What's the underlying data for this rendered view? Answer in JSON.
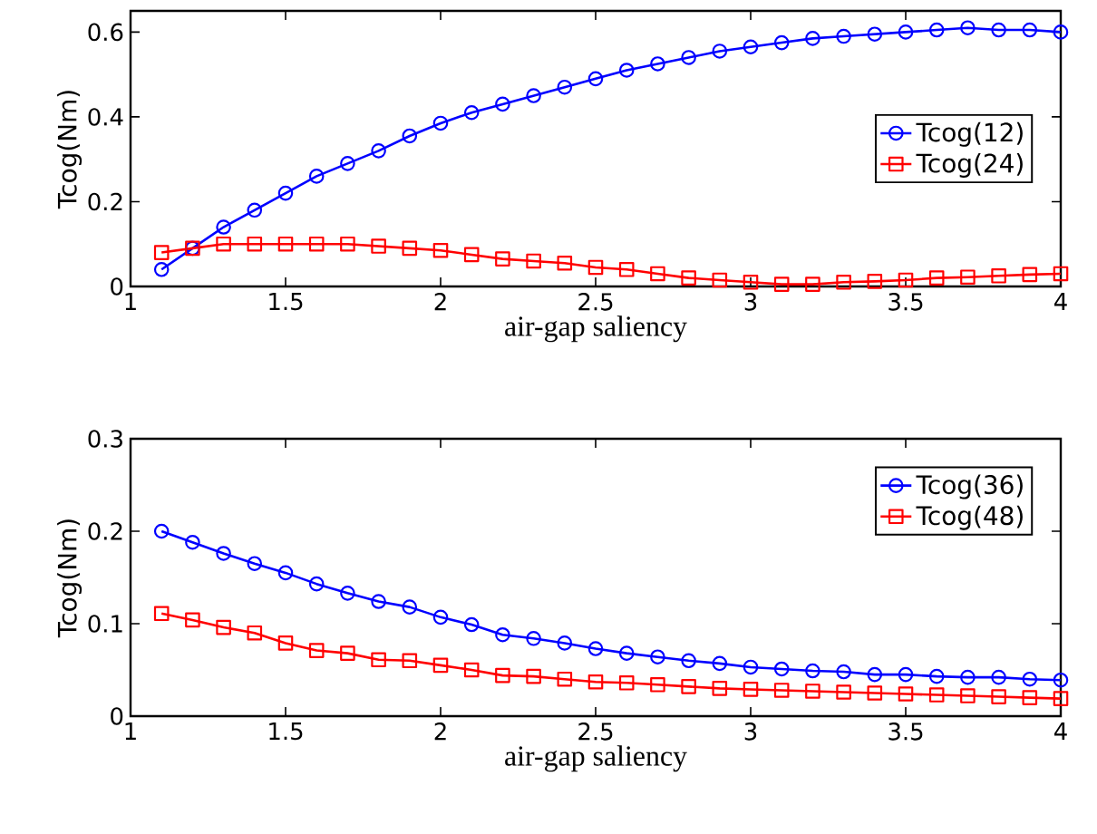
{
  "chart_data": [
    {
      "type": "line",
      "xlabel": "air-gap saliency",
      "ylabel": "Tcog(Nm)",
      "x": [
        1.1,
        1.2,
        1.3,
        1.4,
        1.5,
        1.6,
        1.7,
        1.8,
        1.9,
        2.0,
        2.1,
        2.2,
        2.3,
        2.4,
        2.5,
        2.6,
        2.7,
        2.8,
        2.9,
        3.0,
        3.1,
        3.2,
        3.3,
        3.4,
        3.5,
        3.6,
        3.7,
        3.8,
        3.9,
        4.0
      ],
      "xlim": [
        1,
        4
      ],
      "xticks": [
        1,
        1.5,
        2,
        2.5,
        3,
        3.5,
        4
      ],
      "ylim": [
        0,
        0.65
      ],
      "yticks": [
        0,
        0.2,
        0.4,
        0.6
      ],
      "grid": false,
      "legend": "right",
      "line_style": "solid",
      "series": [
        {
          "name": "Tcog(12)",
          "color": "#0000ff",
          "marker": "circle",
          "values": [
            0.04,
            0.09,
            0.14,
            0.18,
            0.22,
            0.26,
            0.29,
            0.32,
            0.355,
            0.385,
            0.41,
            0.43,
            0.45,
            0.47,
            0.49,
            0.51,
            0.525,
            0.54,
            0.555,
            0.565,
            0.575,
            0.585,
            0.59,
            0.595,
            0.6,
            0.605,
            0.61,
            0.605,
            0.605,
            0.6
          ]
        },
        {
          "name": "Tcog(24)",
          "color": "#ff0000",
          "marker": "square",
          "values": [
            0.08,
            0.09,
            0.1,
            0.1,
            0.1,
            0.1,
            0.1,
            0.095,
            0.09,
            0.085,
            0.075,
            0.065,
            0.06,
            0.055,
            0.045,
            0.04,
            0.03,
            0.02,
            0.015,
            0.01,
            0.005,
            0.005,
            0.01,
            0.012,
            0.015,
            0.02,
            0.022,
            0.025,
            0.028,
            0.03
          ]
        }
      ]
    },
    {
      "type": "line",
      "xlabel": "air-gap saliency",
      "ylabel": "Tcog(Nm)",
      "x": [
        1.1,
        1.2,
        1.3,
        1.4,
        1.5,
        1.6,
        1.7,
        1.8,
        1.9,
        2.0,
        2.1,
        2.2,
        2.3,
        2.4,
        2.5,
        2.6,
        2.7,
        2.8,
        2.9,
        3.0,
        3.1,
        3.2,
        3.3,
        3.4,
        3.5,
        3.6,
        3.7,
        3.8,
        3.9,
        4.0
      ],
      "xlim": [
        1,
        4
      ],
      "xticks": [
        1,
        1.5,
        2,
        2.5,
        3,
        3.5,
        4
      ],
      "ylim": [
        0,
        0.3
      ],
      "yticks": [
        0,
        0.1,
        0.2,
        0.3
      ],
      "grid": false,
      "legend": "top right",
      "line_style": "solid",
      "series": [
        {
          "name": "Tcog(36)",
          "color": "#0000ff",
          "marker": "circle",
          "values": [
            0.2,
            0.188,
            0.176,
            0.165,
            0.155,
            0.143,
            0.133,
            0.124,
            0.118,
            0.107,
            0.099,
            0.088,
            0.084,
            0.079,
            0.073,
            0.068,
            0.064,
            0.06,
            0.057,
            0.053,
            0.051,
            0.049,
            0.048,
            0.045,
            0.045,
            0.043,
            0.042,
            0.042,
            0.04,
            0.039
          ]
        },
        {
          "name": "Tcog(48)",
          "color": "#ff0000",
          "marker": "square",
          "values": [
            0.111,
            0.104,
            0.096,
            0.09,
            0.079,
            0.071,
            0.068,
            0.061,
            0.06,
            0.055,
            0.05,
            0.044,
            0.043,
            0.04,
            0.037,
            0.036,
            0.034,
            0.032,
            0.03,
            0.029,
            0.028,
            0.027,
            0.026,
            0.025,
            0.024,
            0.023,
            0.022,
            0.021,
            0.02,
            0.019
          ]
        }
      ]
    }
  ]
}
